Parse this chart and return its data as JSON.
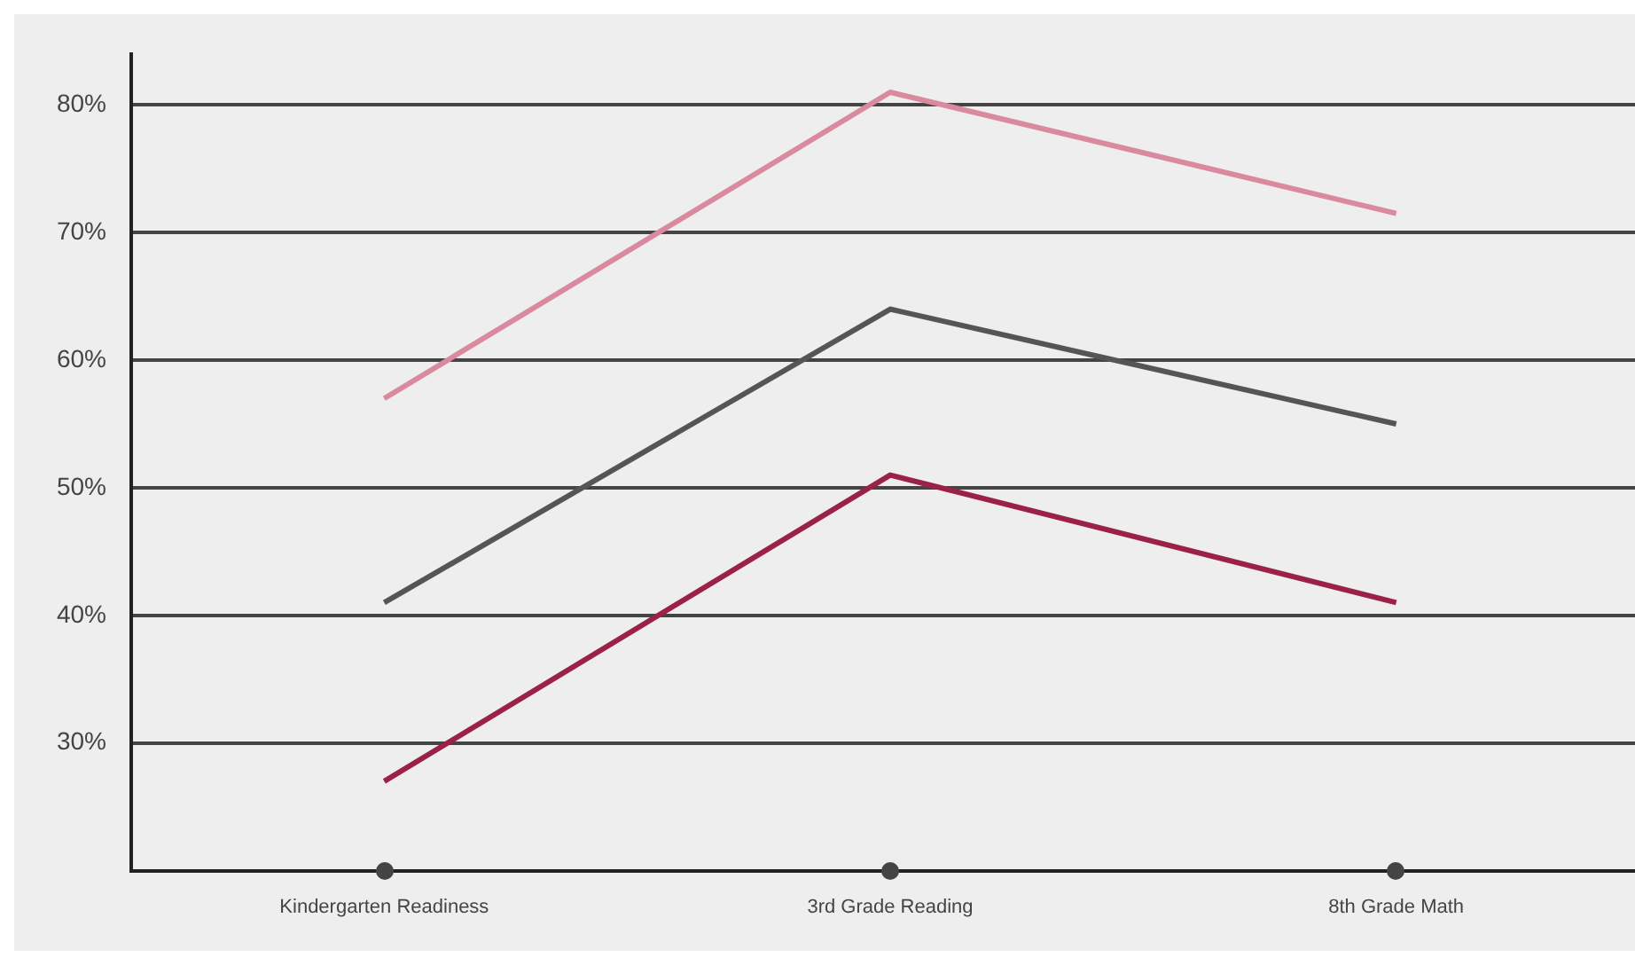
{
  "chart_data": {
    "type": "line",
    "categories": [
      "Kindergarten Readiness",
      "3rd Grade Reading",
      "8th Grade Math"
    ],
    "series": [
      {
        "color": "#d98a9e",
        "values": [
          57,
          81,
          71.5
        ]
      },
      {
        "color": "#555555",
        "values": [
          41,
          64,
          55
        ]
      },
      {
        "color": "#9b2246",
        "values": [
          27,
          51,
          41
        ]
      }
    ],
    "ylim": [
      20,
      84
    ],
    "yticks": [
      {
        "value": 30,
        "label": "30%"
      },
      {
        "value": 40,
        "label": "40%"
      },
      {
        "value": 50,
        "label": "50%"
      },
      {
        "value": 60,
        "label": "60%"
      },
      {
        "value": 70,
        "label": "70%"
      },
      {
        "value": 80,
        "label": "80%"
      }
    ],
    "grid": "y",
    "legend": false,
    "marker": "none",
    "line_style": "solid"
  }
}
